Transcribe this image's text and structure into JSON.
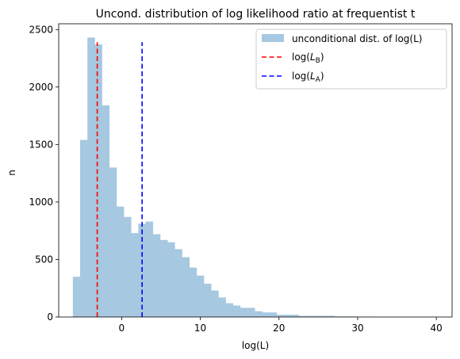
{
  "chart_data": {
    "type": "bar",
    "title": "Uncond. distribution of log likelihood ratio at frequentist  t",
    "xlabel": "log(L)",
    "ylabel": "n",
    "xlim": [
      -8,
      42
    ],
    "ylim": [
      0,
      2550
    ],
    "xticks": [
      0,
      10,
      20,
      30,
      40
    ],
    "yticks": [
      0,
      500,
      1000,
      1500,
      2000,
      2500
    ],
    "grid": false,
    "legend_position": "top-right",
    "histogram": {
      "name": "unconditional dist. of log(L)",
      "color": "#a6c8e0",
      "bin_start": -6.2,
      "bin_width": 0.925,
      "counts": [
        350,
        1540,
        2430,
        2370,
        1840,
        1300,
        960,
        870,
        730,
        810,
        830,
        720,
        670,
        650,
        590,
        520,
        430,
        360,
        290,
        230,
        170,
        120,
        100,
        80,
        80,
        50,
        40,
        40,
        20,
        20,
        20,
        10,
        10,
        10,
        10,
        10,
        5,
        5,
        5,
        3,
        3,
        3,
        2,
        2,
        2,
        1,
        1,
        1,
        1,
        1
      ]
    },
    "vlines": [
      {
        "name": "log(L_B)",
        "label_base": "log(",
        "label_var": "L",
        "label_sub": "B",
        "label_end": ")",
        "x": -3.1,
        "ymax": 2390,
        "color": "#ff0000"
      },
      {
        "name": "log(L_A)",
        "label_base": "log(",
        "label_var": "L",
        "label_sub": "A",
        "label_end": ")",
        "x": 2.6,
        "ymax": 2390,
        "color": "#0000ff"
      }
    ]
  }
}
